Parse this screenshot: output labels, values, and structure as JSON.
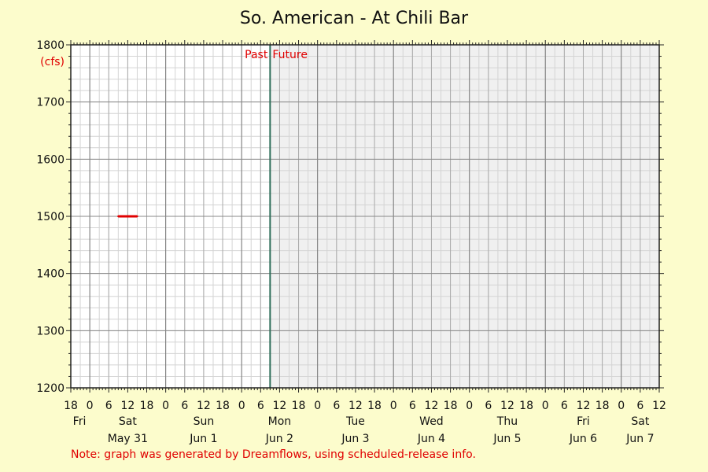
{
  "chart_data": {
    "type": "line",
    "title": "So. American - At Chili Bar",
    "ylabel": "(cfs)",
    "ylim": [
      1200,
      1800
    ],
    "yticks": [
      1200,
      1300,
      1400,
      1500,
      1600,
      1700,
      1800
    ],
    "xlim": [
      "2025-05-30 18:00",
      "2025-06-07 12:00"
    ],
    "x_hour_ticks": [
      {
        "t": "2025-05-30 18:00",
        "label": "18"
      },
      {
        "t": "2025-05-31 00:00",
        "label": "0"
      },
      {
        "t": "2025-05-31 06:00",
        "label": "6"
      },
      {
        "t": "2025-05-31 12:00",
        "label": "12"
      },
      {
        "t": "2025-05-31 18:00",
        "label": "18"
      },
      {
        "t": "2025-06-01 00:00",
        "label": "0"
      },
      {
        "t": "2025-06-01 06:00",
        "label": "6"
      },
      {
        "t": "2025-06-01 12:00",
        "label": "12"
      },
      {
        "t": "2025-06-01 18:00",
        "label": "18"
      },
      {
        "t": "2025-06-02 00:00",
        "label": "0"
      },
      {
        "t": "2025-06-02 06:00",
        "label": "6"
      },
      {
        "t": "2025-06-02 12:00",
        "label": "12"
      },
      {
        "t": "2025-06-02 18:00",
        "label": "18"
      },
      {
        "t": "2025-06-03 00:00",
        "label": "0"
      },
      {
        "t": "2025-06-03 06:00",
        "label": "6"
      },
      {
        "t": "2025-06-03 12:00",
        "label": "12"
      },
      {
        "t": "2025-06-03 18:00",
        "label": "18"
      },
      {
        "t": "2025-06-04 00:00",
        "label": "0"
      },
      {
        "t": "2025-06-04 06:00",
        "label": "6"
      },
      {
        "t": "2025-06-04 12:00",
        "label": "12"
      },
      {
        "t": "2025-06-04 18:00",
        "label": "18"
      },
      {
        "t": "2025-06-05 00:00",
        "label": "0"
      },
      {
        "t": "2025-06-05 06:00",
        "label": "6"
      },
      {
        "t": "2025-06-05 12:00",
        "label": "12"
      },
      {
        "t": "2025-06-05 18:00",
        "label": "18"
      },
      {
        "t": "2025-06-06 00:00",
        "label": "0"
      },
      {
        "t": "2025-06-06 06:00",
        "label": "6"
      },
      {
        "t": "2025-06-06 12:00",
        "label": "12"
      },
      {
        "t": "2025-06-06 18:00",
        "label": "18"
      },
      {
        "t": "2025-06-07 00:00",
        "label": "0"
      },
      {
        "t": "2025-06-07 06:00",
        "label": "6"
      },
      {
        "t": "2025-06-07 12:00",
        "label": "12"
      }
    ],
    "day_labels": [
      {
        "t": "2025-05-30 18:00",
        "day": "Fri",
        "date": ""
      },
      {
        "t": "2025-05-31 12:00",
        "day": "Sat",
        "date": "May 31"
      },
      {
        "t": "2025-06-01 12:00",
        "day": "Sun",
        "date": "Jun 1"
      },
      {
        "t": "2025-06-02 12:00",
        "day": "Mon",
        "date": "Jun 2"
      },
      {
        "t": "2025-06-03 12:00",
        "day": "Tue",
        "date": "Jun 3"
      },
      {
        "t": "2025-06-04 12:00",
        "day": "Wed",
        "date": "Jun 4"
      },
      {
        "t": "2025-06-05 12:00",
        "day": "Thu",
        "date": "Jun 5"
      },
      {
        "t": "2025-06-06 12:00",
        "day": "Fri",
        "date": "Jun 6"
      },
      {
        "t": "2025-06-07 06:00",
        "day": "Sat",
        "date": "Jun 7"
      }
    ],
    "now": "2025-06-02 09:00",
    "past_label": "Past",
    "future_label": "Future",
    "series": [
      {
        "color": "#e00000",
        "points": [
          {
            "t": "2025-05-31 09:00",
            "y": 1500
          },
          {
            "t": "2025-05-31 15:00",
            "y": 1500
          }
        ]
      }
    ],
    "grid": true,
    "colors": {
      "background": "#fcfccc",
      "plot_past": "#ffffff",
      "plot_future": "#f0f0f0",
      "now_line": "#2f6e5a",
      "label_red": "#e00000"
    }
  },
  "note": "Note: graph was generated by Dreamflows, using scheduled-release info."
}
